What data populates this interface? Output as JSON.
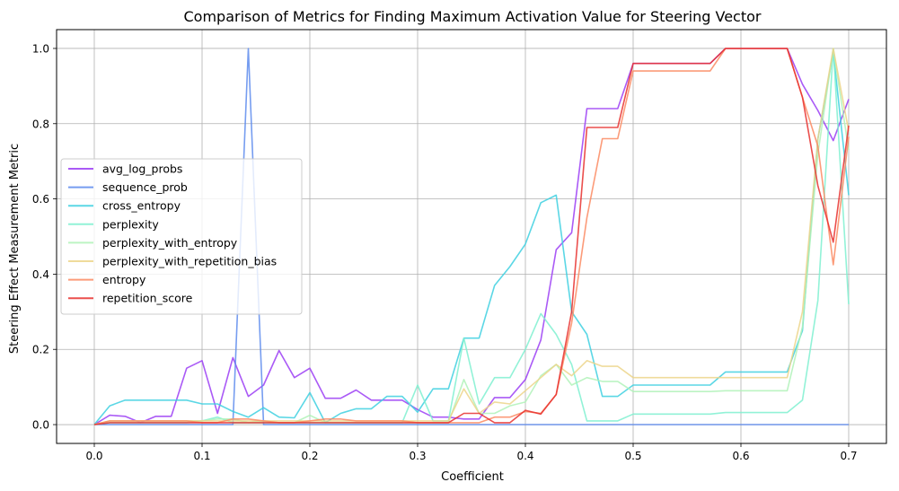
{
  "chart_data": {
    "type": "line",
    "title": "Comparison of Metrics for Finding Maximum Activation Value for Steering Vector",
    "xlabel": "Coefficient",
    "ylabel": "Steering Effect Measurement Metric",
    "xlim": [
      -0.035,
      0.735
    ],
    "ylim": [
      -0.05,
      1.05
    ],
    "xticks": [
      0.0,
      0.1,
      0.2,
      0.3,
      0.4,
      0.5,
      0.6,
      0.7
    ],
    "xtick_labels": [
      "0.0",
      "0.1",
      "0.2",
      "0.3",
      "0.4",
      "0.5",
      "0.6",
      "0.7"
    ],
    "yticks": [
      0.0,
      0.2,
      0.4,
      0.6,
      0.8,
      1.0
    ],
    "ytick_labels": [
      "0.0",
      "0.2",
      "0.4",
      "0.6",
      "0.8",
      "1.0"
    ],
    "grid": true,
    "legend_position": "center-left",
    "x": [
      0.0,
      0.0143,
      0.0286,
      0.0429,
      0.0571,
      0.0714,
      0.0857,
      0.1,
      0.1143,
      0.1286,
      0.1429,
      0.1571,
      0.1714,
      0.1857,
      0.2,
      0.2143,
      0.2286,
      0.2429,
      0.2571,
      0.2714,
      0.2857,
      0.3,
      0.3143,
      0.3286,
      0.3429,
      0.3571,
      0.3714,
      0.3857,
      0.4,
      0.4143,
      0.4286,
      0.4429,
      0.4571,
      0.4714,
      0.4857,
      0.5,
      0.5143,
      0.5286,
      0.5429,
      0.5571,
      0.5714,
      0.5857,
      0.6,
      0.6143,
      0.6286,
      0.6429,
      0.6571,
      0.6714,
      0.6857,
      0.7
    ],
    "series": [
      {
        "name": "avg_log_probs",
        "color": "#9b3df5",
        "values": [
          0.0,
          0.025,
          0.022,
          0.005,
          0.022,
          0.022,
          0.15,
          0.17,
          0.03,
          0.178,
          0.075,
          0.105,
          0.197,
          0.125,
          0.15,
          0.07,
          0.07,
          0.092,
          0.065,
          0.065,
          0.065,
          0.04,
          0.02,
          0.02,
          0.015,
          0.015,
          0.072,
          0.072,
          0.12,
          0.225,
          0.465,
          0.51,
          0.84,
          0.84,
          0.84,
          0.96,
          0.96,
          0.96,
          0.96,
          0.96,
          0.96,
          1.0,
          1.0,
          1.0,
          1.0,
          1.0,
          0.905,
          0.835,
          0.755,
          0.865
        ]
      },
      {
        "name": "sequence_prob",
        "color": "#5e8ced",
        "values": [
          0.0,
          0.0,
          0.0,
          0.0,
          0.0,
          0.0,
          0.0,
          0.0,
          0.0,
          0.0,
          1.0,
          0.0,
          0.0,
          0.0,
          0.0,
          0.0,
          0.0,
          0.0,
          0.0,
          0.0,
          0.0,
          0.0,
          0.0,
          0.0,
          0.0,
          0.0,
          0.0,
          0.0,
          0.0,
          0.0,
          0.0,
          0.0,
          0.0,
          0.0,
          0.0,
          0.0,
          0.0,
          0.0,
          0.0,
          0.0,
          0.0,
          0.0,
          0.0,
          0.0,
          0.0,
          0.0,
          0.0,
          0.0,
          0.0,
          0.0
        ]
      },
      {
        "name": "cross_entropy",
        "color": "#3ed0e0",
        "values": [
          0.0,
          0.05,
          0.065,
          0.065,
          0.065,
          0.065,
          0.065,
          0.055,
          0.055,
          0.035,
          0.02,
          0.045,
          0.02,
          0.018,
          0.085,
          0.005,
          0.03,
          0.042,
          0.042,
          0.075,
          0.075,
          0.033,
          0.095,
          0.095,
          0.23,
          0.23,
          0.37,
          0.42,
          0.48,
          0.59,
          0.61,
          0.3,
          0.24,
          0.075,
          0.075,
          0.105,
          0.105,
          0.105,
          0.105,
          0.105,
          0.105,
          0.14,
          0.14,
          0.14,
          0.14,
          0.14,
          0.25,
          0.76,
          0.99,
          0.61
        ]
      },
      {
        "name": "perplexity",
        "color": "#7ff0d0",
        "values": [
          0.0,
          0.005,
          0.005,
          0.005,
          0.005,
          0.005,
          0.005,
          0.01,
          0.02,
          0.005,
          0.005,
          0.005,
          0.005,
          0.005,
          0.005,
          0.005,
          0.005,
          0.005,
          0.005,
          0.005,
          0.005,
          0.105,
          0.01,
          0.01,
          0.23,
          0.055,
          0.125,
          0.125,
          0.2,
          0.295,
          0.24,
          0.16,
          0.01,
          0.01,
          0.01,
          0.028,
          0.028,
          0.028,
          0.028,
          0.028,
          0.028,
          0.032,
          0.032,
          0.032,
          0.032,
          0.032,
          0.065,
          0.33,
          1.0,
          0.32
        ]
      },
      {
        "name": "perplexity_with_entropy",
        "color": "#b0f2b8",
        "values": [
          0.0,
          0.01,
          0.01,
          0.01,
          0.01,
          0.01,
          0.01,
          0.01,
          0.015,
          0.015,
          0.005,
          0.01,
          0.005,
          0.005,
          0.025,
          0.005,
          0.005,
          0.005,
          0.005,
          0.005,
          0.005,
          0.005,
          0.005,
          0.005,
          0.12,
          0.03,
          0.03,
          0.05,
          0.06,
          0.13,
          0.16,
          0.105,
          0.125,
          0.115,
          0.115,
          0.088,
          0.088,
          0.088,
          0.088,
          0.088,
          0.088,
          0.09,
          0.09,
          0.09,
          0.09,
          0.09,
          0.26,
          0.72,
          1.0,
          0.73
        ]
      },
      {
        "name": "perplexity_with_repetition_bias",
        "color": "#ecd58a",
        "values": [
          0.0,
          0.01,
          0.01,
          0.01,
          0.01,
          0.01,
          0.01,
          0.01,
          0.01,
          0.01,
          0.01,
          0.01,
          0.01,
          0.01,
          0.01,
          0.01,
          0.01,
          0.01,
          0.01,
          0.01,
          0.01,
          0.01,
          0.01,
          0.01,
          0.095,
          0.03,
          0.06,
          0.055,
          0.09,
          0.125,
          0.16,
          0.13,
          0.17,
          0.155,
          0.155,
          0.125,
          0.125,
          0.125,
          0.125,
          0.125,
          0.125,
          0.125,
          0.125,
          0.125,
          0.125,
          0.125,
          0.3,
          0.76,
          1.0,
          0.78
        ]
      },
      {
        "name": "entropy",
        "color": "#fb8a61",
        "values": [
          0.0,
          0.01,
          0.01,
          0.01,
          0.01,
          0.01,
          0.01,
          0.005,
          0.005,
          0.015,
          0.015,
          0.01,
          0.005,
          0.005,
          0.01,
          0.015,
          0.015,
          0.01,
          0.01,
          0.01,
          0.01,
          0.005,
          0.005,
          0.005,
          0.005,
          0.005,
          0.02,
          0.02,
          0.035,
          0.03,
          0.08,
          0.27,
          0.55,
          0.76,
          0.76,
          0.94,
          0.94,
          0.94,
          0.94,
          0.94,
          0.94,
          1.0,
          1.0,
          1.0,
          1.0,
          1.0,
          0.87,
          0.74,
          0.425,
          0.765
        ]
      },
      {
        "name": "repetition_score",
        "color": "#e8302e",
        "values": [
          0.0,
          0.005,
          0.005,
          0.005,
          0.005,
          0.005,
          0.005,
          0.005,
          0.005,
          0.005,
          0.005,
          0.005,
          0.005,
          0.005,
          0.005,
          0.005,
          0.005,
          0.005,
          0.005,
          0.005,
          0.005,
          0.005,
          0.005,
          0.005,
          0.03,
          0.03,
          0.005,
          0.005,
          0.038,
          0.028,
          0.08,
          0.3,
          0.79,
          0.79,
          0.79,
          0.96,
          0.96,
          0.96,
          0.96,
          0.96,
          0.96,
          1.0,
          1.0,
          1.0,
          1.0,
          1.0,
          0.87,
          0.635,
          0.485,
          0.795
        ]
      }
    ]
  }
}
